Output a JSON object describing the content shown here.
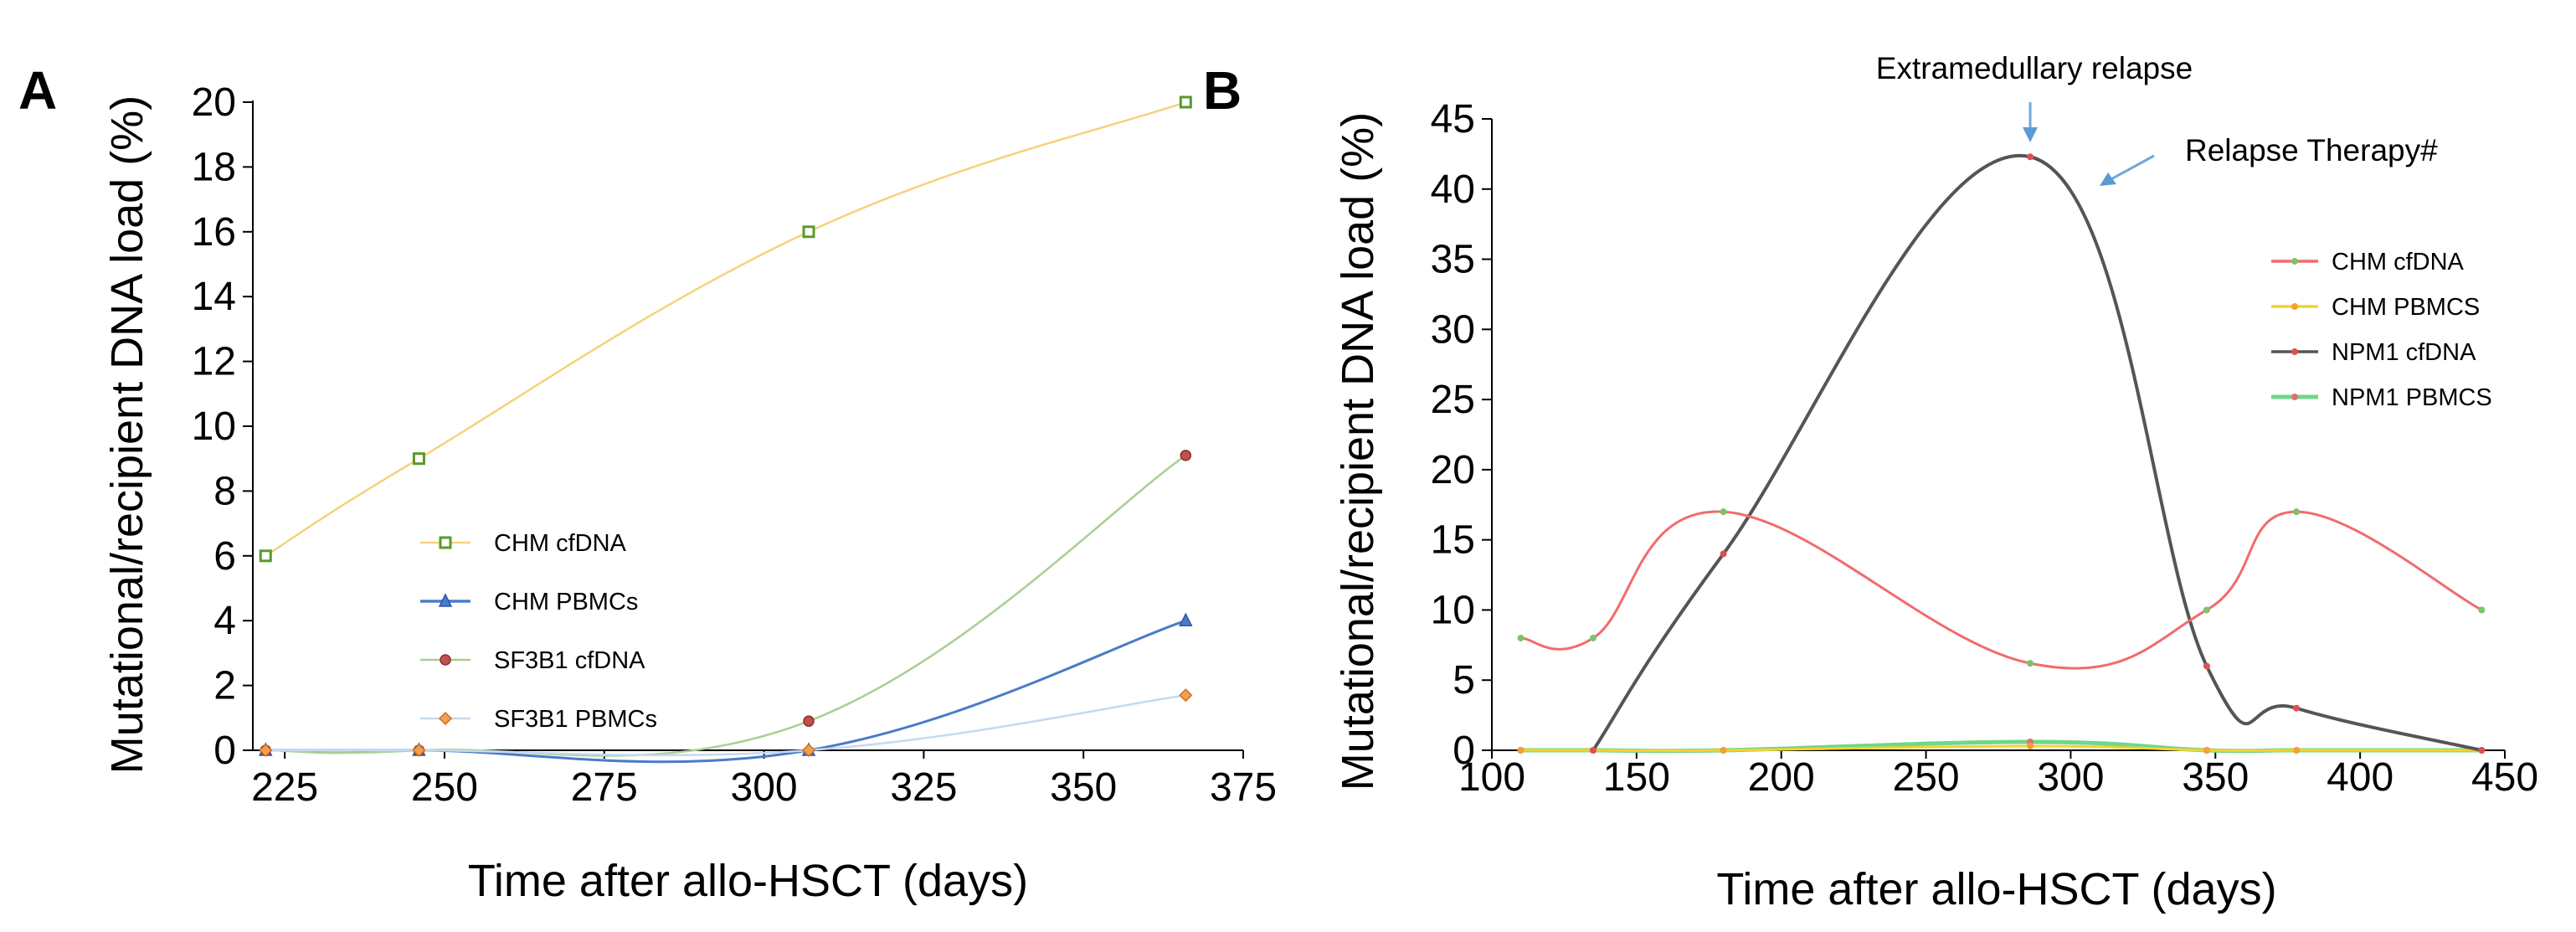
{
  "figure": {
    "panels": [
      "A",
      "B"
    ]
  },
  "chart_data": [
    {
      "panel": "A",
      "type": "line",
      "title": "",
      "xlabel": "Time after allo-HSCT (days)",
      "ylabel": "Mutational/recipient DNA load (%)",
      "xlim": [
        220,
        375
      ],
      "ylim": [
        0,
        20
      ],
      "xticks": [
        225,
        250,
        275,
        300,
        325,
        350,
        375
      ],
      "yticks": [
        0,
        2,
        4,
        6,
        8,
        10,
        12,
        14,
        16,
        18,
        20
      ],
      "grid": false,
      "legend_position": "center",
      "series": [
        {
          "name": "CHM cfDNA",
          "color": "#f5d27a",
          "marker": "square",
          "marker_color": "#5a9a2a",
          "x": [
            222,
            246,
            307,
            366
          ],
          "y": [
            6,
            9,
            16,
            20
          ]
        },
        {
          "name": "CHM PBMCs",
          "color": "#4a7bc8",
          "marker": "triangle",
          "marker_color": "#4a7bc8",
          "x": [
            222,
            246,
            307,
            366
          ],
          "y": [
            0,
            0,
            0,
            4
          ]
        },
        {
          "name": "SF3B1 cfDNA",
          "color": "#a9cf94",
          "marker": "circle",
          "marker_color": "#c0504d",
          "x": [
            222,
            246,
            307,
            366
          ],
          "y": [
            0,
            0,
            0.9,
            9.1
          ]
        },
        {
          "name": "SF3B1 PBMCs",
          "color": "#c5d9f0",
          "marker": "diamond",
          "marker_color": "#f0a050",
          "x": [
            222,
            246,
            307,
            366
          ],
          "y": [
            0,
            0,
            0,
            1.7
          ]
        }
      ]
    },
    {
      "panel": "B",
      "type": "line",
      "title": "",
      "xlabel": "Time after allo-HSCT (days)",
      "ylabel": "Mutational/recipient DNA load (%)",
      "xlim": [
        100,
        450
      ],
      "ylim": [
        0,
        45
      ],
      "xticks": [
        100,
        150,
        200,
        250,
        300,
        350,
        400,
        450
      ],
      "yticks": [
        0,
        5,
        10,
        15,
        20,
        25,
        30,
        35,
        40,
        45
      ],
      "grid": false,
      "legend_position": "right",
      "annotations": [
        {
          "text": "Extramedullary relapse",
          "x": 286,
          "y": 42.3
        },
        {
          "text": "Relapse Therapy#",
          "x": 293,
          "y": 41
        }
      ],
      "series": [
        {
          "name": "CHM cfDNA",
          "color": "#f26b6b",
          "marker_color": "#7ac36a",
          "x": [
            110,
            135,
            180,
            286,
            347,
            378,
            442
          ],
          "y": [
            8,
            8,
            17,
            6.2,
            10,
            17,
            10
          ]
        },
        {
          "name": "CHM PBMCS",
          "color": "#f5d230",
          "marker_color": "#f5a030",
          "x": [
            110,
            135,
            180,
            286,
            347,
            378,
            442
          ],
          "y": [
            0,
            0,
            0,
            0.3,
            0,
            0,
            0
          ]
        },
        {
          "name": "NPM1 cfDNA",
          "color": "#555555",
          "marker_color": "#e05050",
          "x": [
            135,
            180,
            286,
            347,
            378,
            442
          ],
          "y": [
            0,
            14,
            42.3,
            6,
            3,
            0
          ]
        },
        {
          "name": "NPM1 PBMCS",
          "color": "#6fd78a",
          "marker_color": "#e07070",
          "x": [
            110,
            135,
            180,
            286,
            347,
            378,
            442
          ],
          "y": [
            0,
            0,
            0,
            0.6,
            0,
            0,
            0
          ]
        }
      ]
    }
  ]
}
